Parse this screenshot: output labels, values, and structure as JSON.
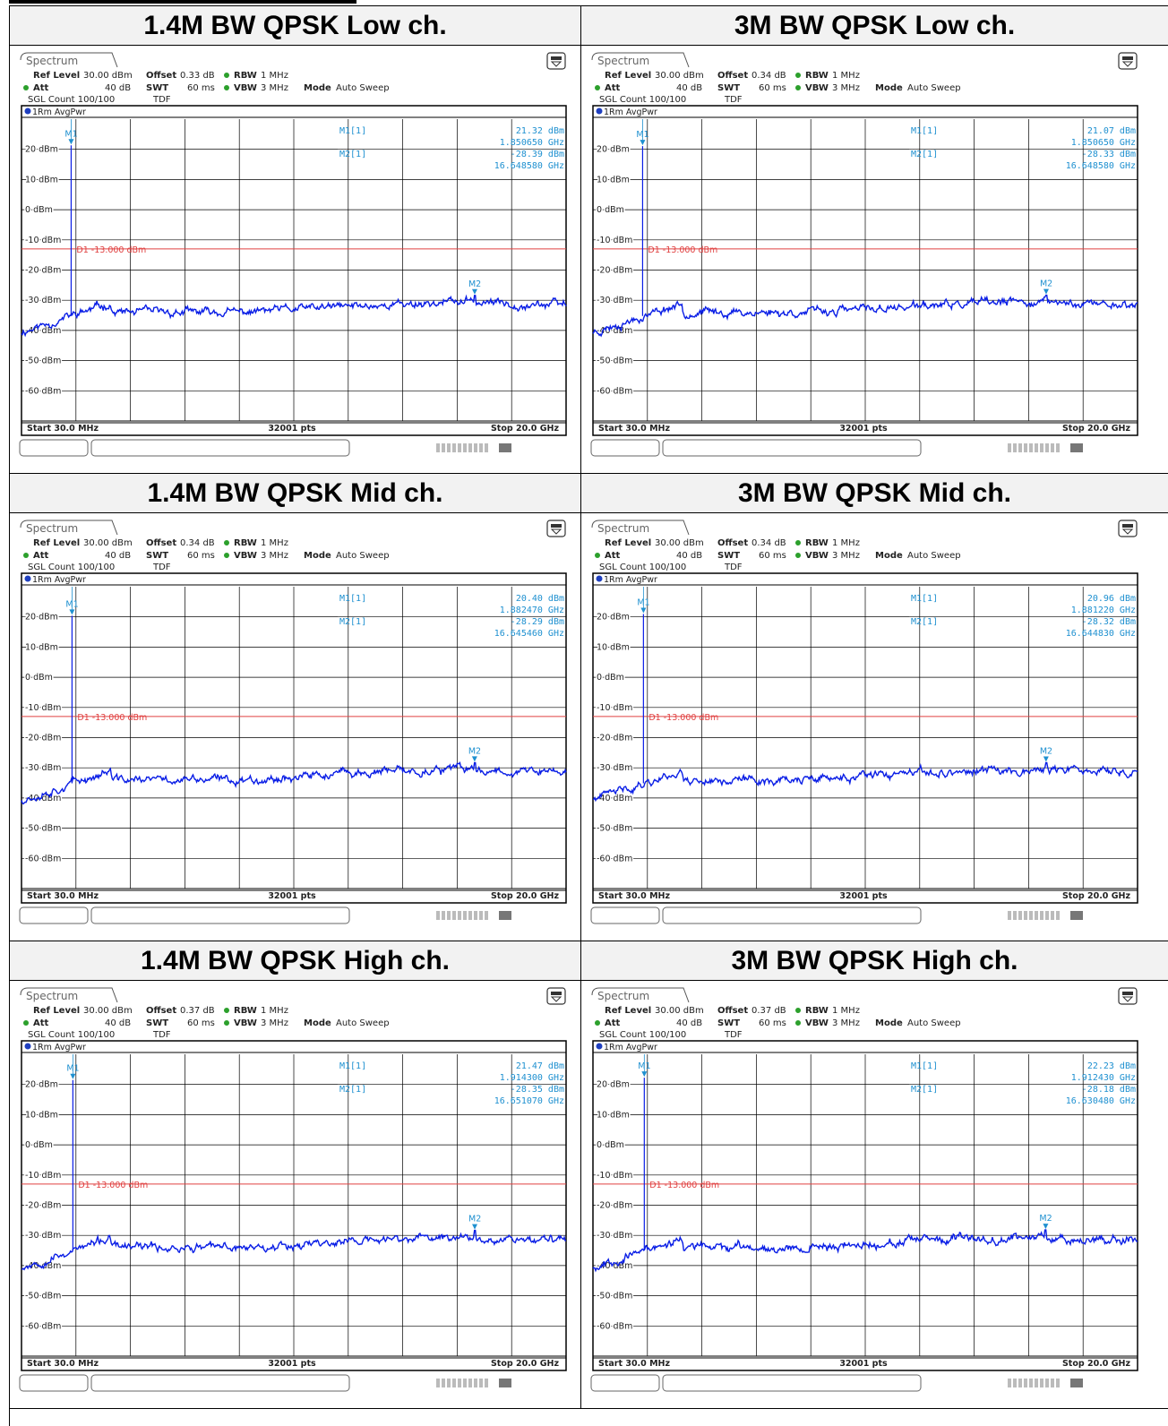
{
  "panels": [
    {
      "title": "1.4M BW QPSK Low ch.",
      "offset": "0.33 dB",
      "m1_level": "21.32 dBm",
      "m1_freq": "1.850650 GHz",
      "m2_level": "-28.39 dBm",
      "m2_freq": "16.648580 GHz",
      "m1_f": 1.85065,
      "m1_v": 21.32,
      "m2_f": 16.64858,
      "m2_v": -28.39,
      "seed": 11
    },
    {
      "title": "3M BW QPSK Low ch.",
      "offset": "0.34 dB",
      "m1_level": "21.07 dBm",
      "m1_freq": "1.850650 GHz",
      "m2_level": "-28.33 dBm",
      "m2_freq": "16.648580 GHz",
      "m1_f": 1.85065,
      "m1_v": 21.07,
      "m2_f": 16.64858,
      "m2_v": -28.33,
      "seed": 23
    },
    {
      "title": "1.4M BW QPSK Mid ch.",
      "offset": "0.34 dB",
      "m1_level": "20.40 dBm",
      "m1_freq": "1.882470 GHz",
      "m2_level": "-28.29 dBm",
      "m2_freq": "16.645460 GHz",
      "m1_f": 1.88247,
      "m1_v": 20.4,
      "m2_f": 16.64546,
      "m2_v": -28.29,
      "seed": 37
    },
    {
      "title": "3M BW QPSK Mid ch.",
      "offset": "0.34 dB",
      "m1_level": "20.96 dBm",
      "m1_freq": "1.881220 GHz",
      "m2_level": "-28.32 dBm",
      "m2_freq": "16.644830 GHz",
      "m1_f": 1.88122,
      "m1_v": 20.96,
      "m2_f": 16.64483,
      "m2_v": -28.32,
      "seed": 41
    },
    {
      "title": "1.4M BW QPSK High ch.",
      "offset": "0.37 dB",
      "m1_level": "21.47 dBm",
      "m1_freq": "1.914300 GHz",
      "m2_level": "-28.35 dBm",
      "m2_freq": "16.651070 GHz",
      "m1_f": 1.9143,
      "m1_v": 21.47,
      "m2_f": 16.65107,
      "m2_v": -28.35,
      "seed": 53
    },
    {
      "title": "3M BW QPSK High ch.",
      "offset": "0.37 dB",
      "m1_level": "22.23 dBm",
      "m1_freq": "1.912430 GHz",
      "m2_level": "-28.18 dBm",
      "m2_freq": "16.630480 GHz",
      "m1_f": 1.91243,
      "m1_v": 22.23,
      "m2_f": 16.63048,
      "m2_v": -28.18,
      "seed": 67
    }
  ],
  "instrument": {
    "tab": "Spectrum",
    "ref_level_label": "Ref Level",
    "ref_level": "30.00 dBm",
    "offset_label": "Offset",
    "rbw_label": "RBW",
    "rbw": "1 MHz",
    "att_label": "Att",
    "att": "40 dB",
    "swt_label": "SWT",
    "swt": "60 ms",
    "vbw_label": "VBW",
    "vbw": "3 MHz",
    "mode_label": "Mode",
    "mode": "Auto Sweep",
    "sgl": "SGL Count 100/100",
    "tdf": "TDF",
    "trace_label": "1Rm AvgPwr",
    "m1_label": "M1[1]",
    "m2_label": "M2[1]",
    "m1_tag": "M1",
    "m2_tag": "M2",
    "limit_label": "D1  -13.000 dBm",
    "start": "Start 30.0 MHz",
    "points": "32001 pts",
    "stop": "Stop 20.0 GHz",
    "ytick_labels": [
      "20 dBm",
      "10 dBm",
      "0 dBm",
      "-10 dBm",
      "-20 dBm",
      "-30 dBm",
      "-40 dBm",
      "-50 dBm",
      "-60 dBm"
    ]
  },
  "chart_data": {
    "type": "line",
    "xlim": [
      0.03,
      20.0
    ],
    "ylim": [
      -70,
      30
    ],
    "xunit": "GHz",
    "yunit": "dBm",
    "yticks": [
      20,
      10,
      0,
      -10,
      -20,
      -30,
      -40,
      -50,
      -60
    ],
    "limit_line": -13.0,
    "trace_shape": {
      "x": [
        0.03,
        3.3,
        3.35,
        8.0,
        12.0,
        16.0,
        20.0
      ],
      "y": [
        -40.5,
        -31.0,
        -34.0,
        -34.0,
        -32.0,
        -30.5,
        -31.5
      ]
    },
    "colors": {
      "trace": "#0a1ee6",
      "limit": "#e04040",
      "marker": "#1e90d0",
      "grid": "#000000"
    }
  }
}
